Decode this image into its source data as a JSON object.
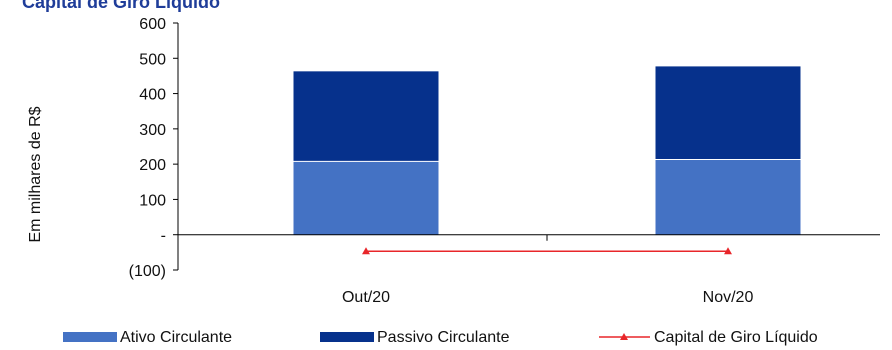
{
  "chart_data": {
    "type": "bar",
    "title": "Capital de Giro Líquido",
    "ylabel": "Em milhares de R$",
    "xlabel": "",
    "categories": [
      "Out/20",
      "Nov/20"
    ],
    "ylim": [
      -100,
      600
    ],
    "yticks": [
      {
        "value": 600,
        "label": "600"
      },
      {
        "value": 500,
        "label": "500"
      },
      {
        "value": 400,
        "label": "400"
      },
      {
        "value": 300,
        "label": "300"
      },
      {
        "value": 200,
        "label": "200"
      },
      {
        "value": 100,
        "label": "100"
      },
      {
        "value": 0,
        "label": "-"
      },
      {
        "value": -100,
        "label": "(100)"
      }
    ],
    "series": [
      {
        "name": "Ativo Circulante",
        "kind": "bar",
        "stack": "a",
        "color": "#4472c4",
        "values": [
          208,
          213
        ]
      },
      {
        "name": "Passivo Circulante",
        "kind": "bar",
        "stack": "a",
        "color": "#06318c",
        "values": [
          255,
          264
        ]
      },
      {
        "name": "Capital de Giro Líquido",
        "kind": "line",
        "color": "#e8262a",
        "values": [
          -47,
          -47
        ]
      }
    ],
    "grid": false,
    "legend": "bottom"
  }
}
